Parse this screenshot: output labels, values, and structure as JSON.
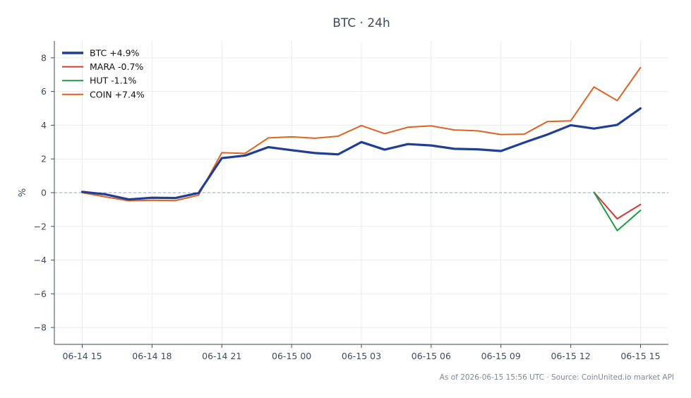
{
  "chart_data": {
    "type": "line",
    "title": "BTC · 24h",
    "xlabel": "",
    "ylabel": "%",
    "ylim": [
      -9,
      9
    ],
    "yticks": [
      -8,
      -6,
      -4,
      -2,
      0,
      2,
      4,
      6,
      8
    ],
    "ytick_labels": [
      "−8",
      "−6",
      "−4",
      "−2",
      "0",
      "2",
      "4",
      "6",
      "8"
    ],
    "x_hours": [
      0,
      1,
      2,
      3,
      4,
      5,
      6,
      7,
      8,
      9,
      10,
      11,
      12,
      13,
      14,
      15,
      16,
      17,
      18,
      19,
      20,
      21,
      22,
      23,
      24
    ],
    "xlim": [
      -1.2,
      25.2
    ],
    "xticks": [
      0,
      3,
      6,
      9,
      12,
      15,
      18,
      21,
      24
    ],
    "xtick_labels": [
      "06-14 15",
      "06-14 18",
      "06-14 21",
      "06-15 00",
      "06-15 03",
      "06-15 06",
      "06-15 09",
      "06-15 12",
      "06-15 15"
    ],
    "grid": true,
    "legend_position": "top-left",
    "zero_line": true,
    "series": [
      {
        "name": "BTC +4.9%",
        "color": "#1f3e96",
        "emphasis": true,
        "x": [
          0,
          1,
          2,
          3,
          4,
          5,
          6,
          7,
          8,
          9,
          10,
          11,
          12,
          13,
          14,
          15,
          16,
          17,
          18,
          19,
          20,
          21,
          22,
          23,
          24
        ],
        "values": [
          0.05,
          -0.1,
          -0.4,
          -0.3,
          -0.32,
          -0.02,
          2.05,
          2.2,
          2.7,
          2.52,
          2.35,
          2.27,
          3.0,
          2.55,
          2.88,
          2.8,
          2.6,
          2.57,
          2.47,
          2.97,
          3.45,
          4.0,
          3.8,
          4.02,
          5.0
        ]
      },
      {
        "name": "MARA -0.7%",
        "color": "#d03a35",
        "emphasis": false,
        "x": [
          22,
          23,
          24
        ],
        "values": [
          0.02,
          -1.55,
          -0.7
        ]
      },
      {
        "name": "HUT -1.1%",
        "color": "#1d9c43",
        "emphasis": false,
        "x": [
          22,
          23,
          24
        ],
        "values": [
          0.02,
          -2.25,
          -1.05
        ]
      },
      {
        "name": "COIN +7.4%",
        "color": "#e0621f",
        "emphasis": false,
        "x": [
          0,
          1,
          2,
          3,
          4,
          5,
          6,
          7,
          8,
          9,
          10,
          11,
          12,
          13,
          14,
          15,
          16,
          17,
          18,
          19,
          20,
          21,
          22,
          23,
          24
        ],
        "values": [
          0.0,
          -0.25,
          -0.48,
          -0.45,
          -0.47,
          -0.15,
          2.37,
          2.33,
          3.25,
          3.31,
          3.23,
          3.35,
          3.98,
          3.5,
          3.88,
          3.96,
          3.72,
          3.67,
          3.45,
          3.47,
          4.22,
          4.26,
          6.27,
          5.46,
          7.42
        ]
      }
    ]
  },
  "footer": {
    "text": "As of 2026-06-15 15:56 UTC · Source: CoinUnited.io market API"
  },
  "colors": {
    "axis": "#3d4b5c",
    "grid": "#ececec",
    "zero_line": "#8fa7c5"
  }
}
